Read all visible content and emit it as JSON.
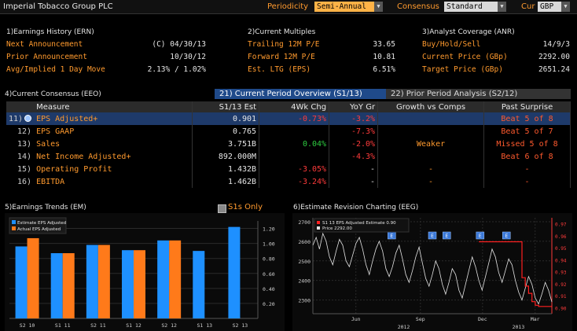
{
  "header": {
    "title": "Imperial Tobacco Group PLC",
    "periodicity_label": "Periodicity",
    "periodicity_value": "Semi-Annual",
    "consensus_label": "Consensus",
    "consensus_value": "Standard",
    "cur_label": "Cur",
    "cur_value": "GBP"
  },
  "earnings_history": {
    "title": "1)Earnings History (ERN)",
    "rows": [
      {
        "label": "Next Announcement",
        "value": "(C)  04/30/13"
      },
      {
        "label": "Prior Announcement",
        "value": "10/30/12"
      },
      {
        "label": "Avg/Implied 1 Day Move",
        "value": "2.13% / 1.02%"
      }
    ]
  },
  "current_multiples": {
    "title": "2)Current Multiples",
    "rows": [
      {
        "label": "Trailing 12M P/E",
        "value": "33.65"
      },
      {
        "label": "Forward 12M P/E",
        "value": "10.81"
      },
      {
        "label": "Est. LTG (EPS)",
        "value": "6.51%"
      }
    ]
  },
  "analyst_coverage": {
    "title": "3)Analyst Coverage (ANR)",
    "rows": [
      {
        "label": "Buy/Hold/Sell",
        "value": "14/9/3"
      },
      {
        "label": "Current Price (GBp)",
        "value": "2292.00"
      },
      {
        "label": "Target Price (GBp)",
        "value": "2651.24"
      }
    ]
  },
  "consensus": {
    "title": "4)Current Consensus (EEO)",
    "tab1": "21) Current Period Overview (S1/13)",
    "tab2": "22) Prior Period Analysis (S2/12)",
    "headers": [
      "Measure",
      "S1/13 Est",
      "4Wk Chg",
      "YoY Gr",
      "Growth vs Comps",
      "Past Surprise"
    ],
    "rows": [
      {
        "num": "11)",
        "measure": "EPS Adjusted+",
        "est": "0.901",
        "chg": "-0.73%",
        "chg_color": "red",
        "yoy": "-3.2%",
        "yoy_color": "red",
        "growth": "",
        "surprise": "Beat 5 of 8",
        "selected": true
      },
      {
        "num": "12)",
        "measure": "EPS GAAP",
        "est": "0.765",
        "chg": "",
        "chg_color": "",
        "yoy": "-7.3%",
        "yoy_color": "red",
        "growth": "",
        "surprise": "Beat 5 of 7",
        "selected": false
      },
      {
        "num": "13)",
        "measure": "Sales",
        "est": "3.751B",
        "chg": "0.04%",
        "chg_color": "green",
        "yoy": "-2.0%",
        "yoy_color": "red",
        "growth": "Weaker",
        "surprise": "Missed 5 of 8",
        "selected": false
      },
      {
        "num": "14)",
        "measure": "Net Income Adjusted+",
        "est": "892.000M",
        "chg": "",
        "chg_color": "",
        "yoy": "-4.3%",
        "yoy_color": "red",
        "growth": "",
        "surprise": "Beat 6 of 8",
        "selected": false
      },
      {
        "num": "15)",
        "measure": "Operating Profit",
        "est": "1.432B",
        "chg": "-3.05%",
        "chg_color": "red",
        "yoy": "-",
        "yoy_color": "white",
        "growth": "-",
        "surprise": "-",
        "selected": false
      },
      {
        "num": "16)",
        "measure": "EBITDA",
        "est": "1.462B",
        "chg": "-3.24%",
        "chg_color": "red",
        "yoy": "-",
        "yoy_color": "white",
        "growth": "-",
        "surprise": "-",
        "selected": false
      }
    ]
  },
  "earnings_trends": {
    "title": "5)Earnings Trends (EM)",
    "s1s_only_label": "S1s Only"
  },
  "estimate_revision": {
    "title": "6)Estimate Revision Charting (EEG)"
  },
  "colors": {
    "accent": "#ff9a2e",
    "blue": "#1e90ff",
    "orange_bar": "#ff7a1a",
    "selected_row": "#1e3a6a",
    "tab_active": "#1f4a8a"
  },
  "chart_data": [
    {
      "type": "bar",
      "categories": [
        "S2 10",
        "S1 11",
        "S2 11",
        "S1 12",
        "S2 12",
        "S1 13",
        "S2 13"
      ],
      "series": [
        {
          "name": "Estimate EPS Adjusted",
          "values": [
            0.96,
            0.87,
            0.98,
            0.91,
            1.04,
            0.9,
            1.22
          ]
        },
        {
          "name": "Actual EPS Adjusted",
          "values": [
            1.07,
            0.87,
            0.98,
            0.91,
            1.04,
            null,
            null
          ]
        }
      ],
      "ylim": [
        0,
        1.3
      ],
      "yticks": [
        "0.20",
        "0.40",
        "0.60",
        "0.80",
        "1.00",
        "1.20"
      ]
    },
    {
      "type": "line",
      "x_labels": [
        "Jun",
        "Sep",
        "Dec",
        "Mar"
      ],
      "x_year_labels": [
        "2012",
        "2013"
      ],
      "y_left_ticks": [
        "2300",
        "2400",
        "2500",
        "2600",
        "2700"
      ],
      "y_right_ticks": [
        "0.90",
        "0.91",
        "0.92",
        "0.93",
        "0.94",
        "0.95",
        "0.96",
        "0.97"
      ],
      "legend": [
        {
          "label": "S1 13 EPS Adjusted Estimate",
          "value": "0.90"
        },
        {
          "label": "Price",
          "value": "2292.00"
        }
      ],
      "price": [
        2580,
        2620,
        2560,
        2640,
        2600,
        2520,
        2480,
        2550,
        2610,
        2580,
        2500,
        2470,
        2530,
        2590,
        2620,
        2560,
        2480,
        2430,
        2500,
        2560,
        2600,
        2550,
        2460,
        2420,
        2470,
        2540,
        2580,
        2510,
        2430,
        2390,
        2450,
        2520,
        2570,
        2490,
        2410,
        2370,
        2430,
        2500,
        2460,
        2380,
        2330,
        2390,
        2460,
        2430,
        2350,
        2310,
        2380,
        2450,
        2520,
        2470,
        2400,
        2350,
        2420,
        2490,
        2560,
        2520,
        2440,
        2390,
        2450,
        2510,
        2480,
        2400,
        2340,
        2300,
        2360,
        2420,
        2380,
        2310,
        2280,
        2330,
        2390,
        2350,
        2290
      ],
      "estimate": [
        null,
        null,
        null,
        null,
        null,
        null,
        null,
        null,
        null,
        null,
        null,
        null,
        null,
        null,
        null,
        null,
        null,
        null,
        null,
        null,
        null,
        null,
        null,
        null,
        null,
        null,
        null,
        null,
        null,
        null,
        null,
        null,
        null,
        null,
        null,
        null,
        null,
        null,
        null,
        null,
        null,
        null,
        null,
        null,
        null,
        null,
        null,
        null,
        null,
        null,
        0.955,
        0.955,
        0.955,
        0.955,
        0.955,
        0.955,
        0.955,
        0.955,
        0.955,
        0.955,
        0.955,
        0.955,
        0.955,
        0.925,
        0.918,
        0.912,
        0.905,
        0.902,
        0.901,
        0.901,
        0.901,
        0.901,
        0.901
      ],
      "markers": [
        "E",
        "E",
        "E",
        "E",
        "E"
      ]
    }
  ]
}
